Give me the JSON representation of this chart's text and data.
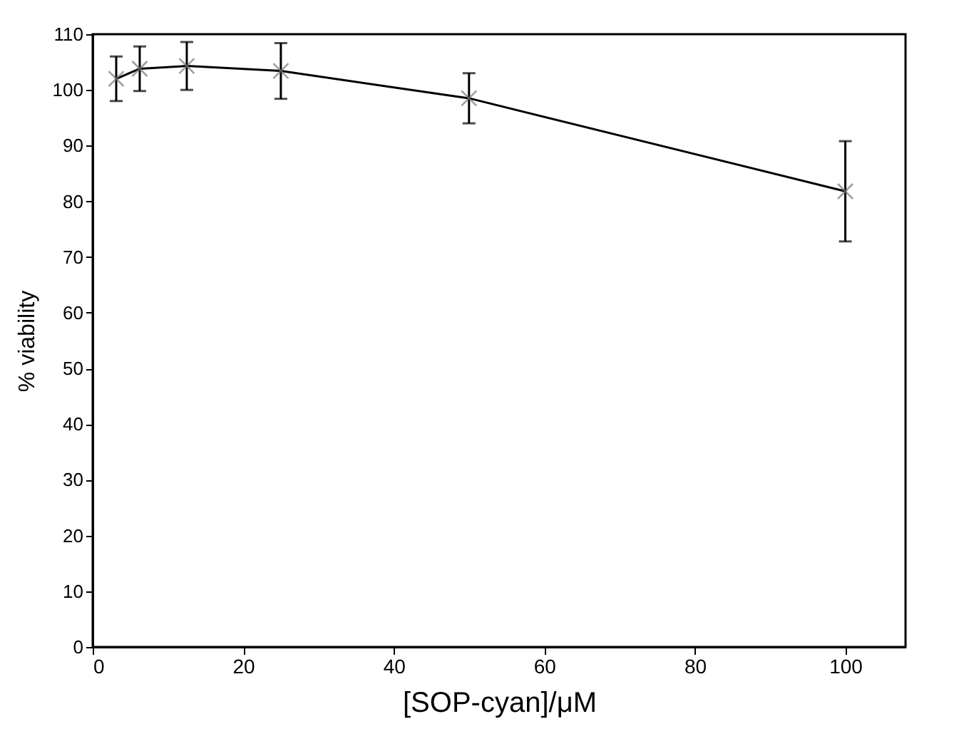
{
  "chart_data": {
    "type": "line",
    "xlabel": "[SOP-cyan]/μM",
    "ylabel": "% viability",
    "x": [
      3.125,
      6.25,
      12.5,
      25,
      50,
      100
    ],
    "series": [
      {
        "color": "#000000",
        "values": [
          102,
          103.8,
          104.3,
          103.4,
          98.5,
          81.8
        ],
        "errors": [
          4,
          4,
          4.3,
          5,
          4.5,
          9
        ]
      }
    ],
    "xlim": [
      0,
      108
    ],
    "xticks": [
      0,
      20,
      40,
      60,
      80,
      100
    ],
    "ylim": [
      0,
      110
    ],
    "yticks": [
      0,
      10,
      20,
      30,
      40,
      50,
      60,
      70,
      80,
      90,
      100,
      110
    ],
    "grid": false,
    "marker": "cross",
    "line_style": "solid"
  }
}
